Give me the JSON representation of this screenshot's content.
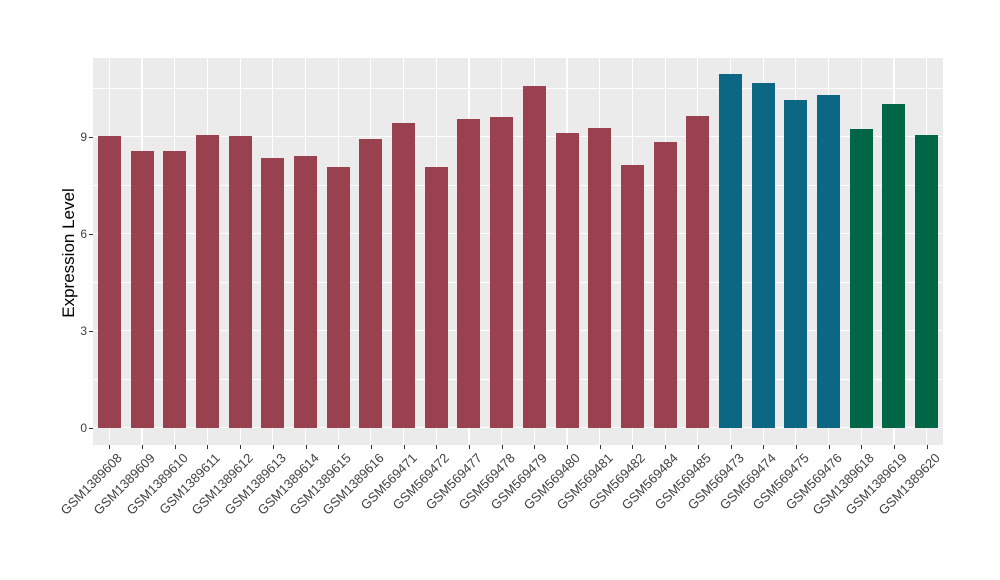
{
  "chart_data": {
    "type": "bar",
    "title": "",
    "xlabel": "",
    "ylabel": "Expression Level",
    "legend_position": "none",
    "panel_background": "#EBEBEB",
    "gridline_color": "#FFFFFF",
    "axis_text_color": "#404040",
    "tick_mark_color": "#333333",
    "y_ticks": [
      0,
      3,
      6,
      9
    ],
    "y_tick_labels": [
      "0",
      "3",
      "6",
      "9"
    ],
    "y_minor_ticks": [
      1.5,
      4.5,
      7.5,
      10.5
    ],
    "ylim": [
      -0.55,
      11.45
    ],
    "categories": [
      "GSM1389608",
      "GSM1389609",
      "GSM1389610",
      "GSM1389611",
      "GSM1389612",
      "GSM1389613",
      "GSM1389614",
      "GSM1389615",
      "GSM1389616",
      "GSM569471",
      "GSM569472",
      "GSM569477",
      "GSM569478",
      "GSM569479",
      "GSM569480",
      "GSM569481",
      "GSM569482",
      "GSM569484",
      "GSM569485",
      "GSM569473",
      "GSM569474",
      "GSM569475",
      "GSM569476",
      "GSM1389618",
      "GSM1389619",
      "GSM1389620"
    ],
    "values": [
      9.03,
      8.56,
      8.57,
      9.06,
      9.03,
      8.36,
      8.42,
      8.08,
      8.95,
      9.42,
      8.06,
      9.56,
      9.62,
      10.58,
      9.13,
      9.26,
      8.13,
      8.84,
      9.64,
      10.95,
      10.66,
      10.15,
      10.3,
      9.24,
      10.02,
      9.06
    ],
    "groups": [
      "darkred",
      "darkred",
      "darkred",
      "darkred",
      "darkred",
      "darkred",
      "darkred",
      "darkred",
      "darkred",
      "darkred",
      "darkred",
      "darkred",
      "darkred",
      "darkred",
      "darkred",
      "darkred",
      "darkred",
      "darkred",
      "darkred",
      "teal",
      "teal",
      "teal",
      "teal",
      "green",
      "green",
      "green"
    ],
    "group_colors": {
      "darkred": "#9A4150",
      "teal": "#0B6783",
      "green": "#006645"
    }
  }
}
